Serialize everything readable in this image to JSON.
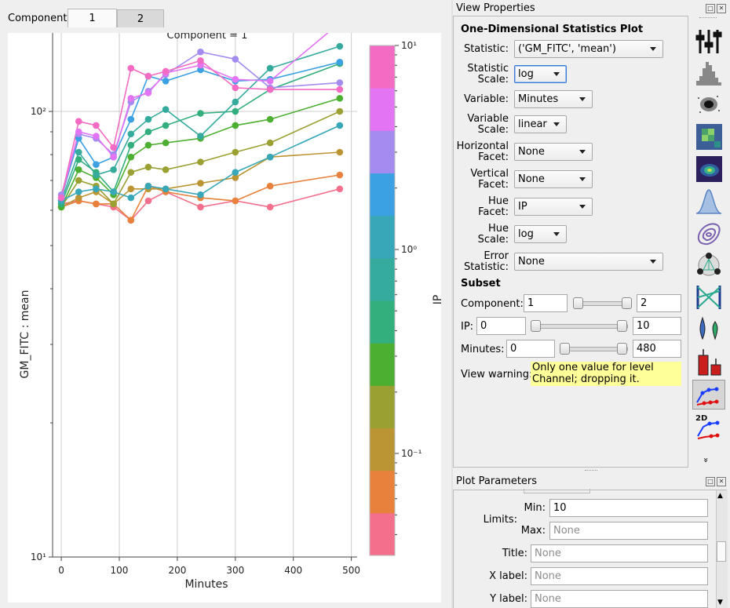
{
  "component_tabs": {
    "label": "Component",
    "tabs": [
      {
        "label": "1",
        "active": true
      },
      {
        "label": "2",
        "active": false
      }
    ]
  },
  "chart_data": {
    "type": "line",
    "title": "Component = 1",
    "xlabel": "Minutes",
    "ylabel": "GM_FITC : mean",
    "x": [
      0,
      30,
      60,
      90,
      120,
      150,
      180,
      240,
      300,
      360,
      480
    ],
    "xticks": [
      "0",
      "100",
      "200",
      "300",
      "400",
      "500"
    ],
    "xlim": [
      -15,
      510
    ],
    "yscale": "log",
    "ylim": [
      10,
      150
    ],
    "yticks": [
      {
        "value": 10,
        "label": "10¹"
      },
      {
        "value": 100,
        "label": "10²"
      }
    ],
    "grid": true,
    "colorbar": {
      "label": "IP",
      "scale": "log",
      "ticks": [
        {
          "value": 10,
          "label": "10¹"
        },
        {
          "value": 1,
          "label": "10⁰"
        },
        {
          "value": 0.1,
          "label": "10⁻¹"
        }
      ],
      "colors": [
        "#f46f8c",
        "#e7813b",
        "#bb9433",
        "#9aa032",
        "#4daf32",
        "#33ae7d",
        "#35ab9e",
        "#38a7b8",
        "#3ba1e2",
        "#a48bf0",
        "#e374f3",
        "#f36bc3"
      ]
    },
    "series": [
      {
        "color": "#f46f8c",
        "values": [
          62,
          63,
          62,
          61,
          57,
          63,
          66,
          61,
          63,
          61,
          67
        ]
      },
      {
        "color": "#e7813b",
        "values": [
          61,
          63,
          62,
          62,
          57,
          68,
          66,
          64,
          63,
          68,
          72
        ]
      },
      {
        "color": "#bb9433",
        "values": [
          61,
          64,
          66,
          62,
          67,
          67,
          67,
          69,
          71,
          79,
          81
        ]
      },
      {
        "color": "#9aa032",
        "values": [
          61,
          70,
          68,
          62,
          73,
          75,
          74,
          77,
          81,
          85,
          100
        ]
      },
      {
        "color": "#4daf32",
        "values": [
          61,
          74,
          71,
          65,
          79,
          84,
          85,
          87,
          93,
          96,
          107
        ]
      },
      {
        "color": "#33ae7d",
        "values": [
          62,
          78,
          73,
          66,
          84,
          90,
          93,
          99,
          100,
          112,
          128
        ]
      },
      {
        "color": "#35ab9e",
        "values": [
          63,
          81,
          72,
          74,
          89,
          96,
          101,
          88,
          105,
          125,
          140
        ]
      },
      {
        "color": "#38a7b8",
        "values": [
          63,
          66,
          67,
          66,
          64,
          68,
          67,
          65,
          73,
          79,
          93
        ]
      },
      {
        "color": "#3ba1e2",
        "values": [
          64,
          87,
          76,
          79,
          96,
          120,
          117,
          124,
          117,
          118,
          129
        ]
      },
      {
        "color": "#a48bf0",
        "values": [
          65,
          89,
          87,
          80,
          105,
          111,
          121,
          136,
          131,
          113,
          116
        ]
      },
      {
        "color": "#e374f3",
        "values": [
          64,
          90,
          88,
          79,
          107,
          110,
          122,
          127,
          118,
          117,
          158
        ]
      },
      {
        "color": "#f36bc3",
        "values": [
          64,
          95,
          93,
          83,
          125,
          120,
          123,
          130,
          113,
          112,
          112
        ]
      }
    ]
  },
  "view_properties": {
    "panel_title": "View Properties",
    "plot_type": "One-Dimensional Statistics Plot",
    "statistic_label": "Statistic:",
    "statistic_value": "('GM_FITC', 'mean')",
    "statistic_scale_label": "Statistic\nScale:",
    "statistic_scale_value": "log",
    "variable_label": "Variable:",
    "variable_value": "Minutes",
    "variable_scale_label": "Variable\nScale:",
    "variable_scale_value": "linear",
    "hfacet_label": "Horizontal\nFacet:",
    "hfacet_value": "None",
    "vfacet_label": "Vertical\nFacet:",
    "vfacet_value": "None",
    "huefacet_label": "Hue\nFacet:",
    "huefacet_value": "IP",
    "huescale_label": "Hue\nScale:",
    "huescale_value": "log",
    "error_label": "Error\nStatistic:",
    "error_value": "None",
    "subset_title": "Subset",
    "subset": [
      {
        "label": "Component:",
        "min": "1",
        "max": "2"
      },
      {
        "label": "IP:",
        "min": "0",
        "max": "10"
      },
      {
        "label": "Minutes:",
        "min": "0",
        "max": "480"
      }
    ],
    "warning_label": "View warning:",
    "warning_text": "Only one value for level Channel; dropping it."
  },
  "toolbar_icons": [
    "barchart-icon",
    "histogram-icon",
    "scatterplot-icon",
    "histogram-2d-icon",
    "density-2d-icon",
    "kde-icon",
    "kde-2d-icon",
    "violin-icon",
    "parallel-plot-icon",
    "violin-plot-icon",
    "bar-chart-icon",
    "stats-1d-icon",
    "stats-2d-icon",
    "more-icon"
  ],
  "toolbar_2d_label": "2D",
  "toolbar_more_label": "»",
  "plot_parameters": {
    "panel_title": "Plot Parameters",
    "limits_label": "Limits:",
    "min_label": "Min:",
    "min_value": "10",
    "max_label": "Max:",
    "max_placeholder": "None",
    "title_label": "Title:",
    "title_placeholder": "None",
    "xlabel_label": "X label:",
    "xlabel_placeholder": "None",
    "ylabel_label": "Y label:",
    "ylabel_placeholder": "None"
  }
}
